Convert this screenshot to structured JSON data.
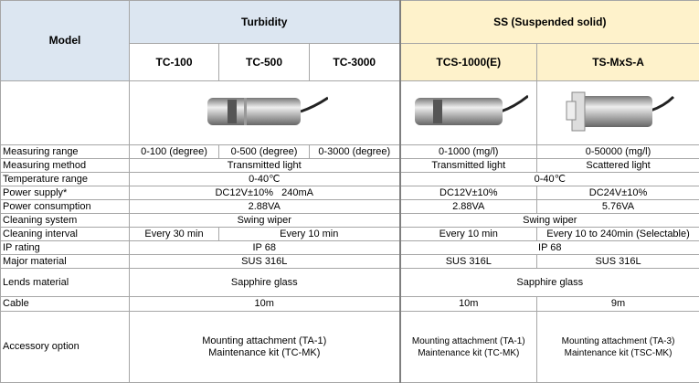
{
  "header": {
    "model": "Model",
    "turbidity": "Turbidity",
    "ss": "SS (Suspended solid)",
    "models": [
      "TC-100",
      "TC-500",
      "TC-3000",
      "TCS-1000(E)",
      "TS-MxS-A"
    ]
  },
  "rows": [
    {
      "label": "Measuring range",
      "cells": [
        "0-100 (degree)",
        "0-500 (degree)",
        "0-3000 (degree)",
        "0-1000 (mg/l)",
        "0-50000 (mg/l)"
      ]
    },
    {
      "label": "Measuring method",
      "cells": [
        "Transmitted light",
        "Transmitted light",
        "Scattered light"
      ]
    },
    {
      "label": "Temperature range",
      "cells": [
        "0-40℃",
        "0-40℃"
      ]
    },
    {
      "label": "Power supply*",
      "cells": [
        "DC12V±10%   240mA",
        "DC12V±10%",
        "DC24V±10%"
      ]
    },
    {
      "label": "Power consumption",
      "cells": [
        "2.88VA",
        "2.88VA",
        "5.76VA"
      ]
    },
    {
      "label": "Cleaning system",
      "cells": [
        "Swing wiper",
        "Swing wiper"
      ]
    },
    {
      "label": "Cleaning interval",
      "cells": [
        "Every 30 min",
        "Every 10 min",
        "Every 10 min",
        "Every 10 to 240min (Selectable)"
      ]
    },
    {
      "label": "IP rating",
      "cells": [
        "IP 68",
        "IP 68"
      ]
    },
    {
      "label": "Major material",
      "cells": [
        "SUS 316L",
        "SUS 316L",
        "SUS 316L"
      ]
    },
    {
      "label": "Lends material",
      "cells": [
        "Sapphire glass",
        "Sapphire glass"
      ]
    },
    {
      "label": "Cable",
      "cells": [
        "10m",
        "10m",
        "9m"
      ]
    },
    {
      "label": "Accessory option",
      "cells": [
        [
          "Mounting attachment (TA-1)",
          "Maintenance kit (TC-MK)"
        ],
        [
          "Mounting attachment (TA-1)",
          "Maintenance kit (TC-MK)"
        ],
        [
          "Mounting attachment (TA-3)",
          "Maintenance kit (TSC-MK)"
        ]
      ]
    }
  ]
}
